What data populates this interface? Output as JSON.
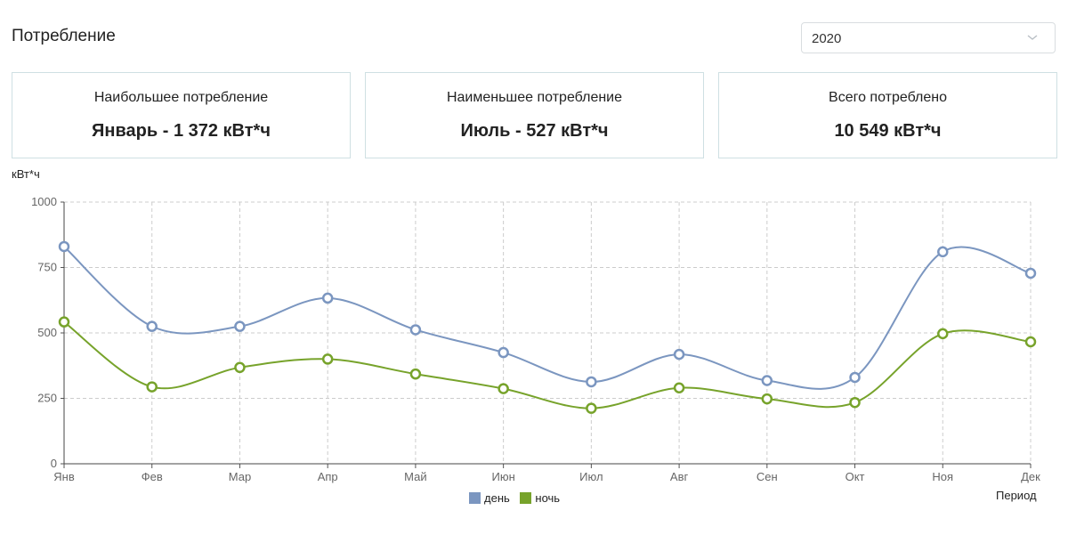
{
  "page": {
    "title": "Потребление"
  },
  "year_select": {
    "value": "2020"
  },
  "cards": [
    {
      "label": "Наибольшее потребление",
      "value": "Январь - 1 372 кВт*ч"
    },
    {
      "label": "Наименьшее потребление",
      "value": "Июль - 527 кВт*ч"
    },
    {
      "label": "Всего потреблено",
      "value": "10 549 кВт*ч"
    }
  ],
  "colors": {
    "day": "#7b96c0",
    "night": "#77a32b",
    "grid": "#cccccc",
    "card_border": "#cfe0e3"
  },
  "chart_data": {
    "type": "line",
    "title": "",
    "ylabel": "кВт*ч",
    "xlabel": "Период",
    "categories": [
      "Янв",
      "Фев",
      "Мар",
      "Апр",
      "Май",
      "Июн",
      "Июл",
      "Авг",
      "Сен",
      "Окт",
      "Ноя",
      "Дек"
    ],
    "ylim": [
      0,
      1000
    ],
    "yticks": [
      0,
      250,
      500,
      750,
      1000
    ],
    "grid": true,
    "legend_position": "bottom-center",
    "series": [
      {
        "name": "день",
        "values": [
          830,
          525,
          525,
          633,
          512,
          425,
          313,
          418,
          318,
          330,
          810,
          728
        ]
      },
      {
        "name": "ночь",
        "values": [
          542,
          294,
          368,
          400,
          343,
          287,
          212,
          290,
          248,
          234,
          497,
          466
        ]
      }
    ]
  }
}
